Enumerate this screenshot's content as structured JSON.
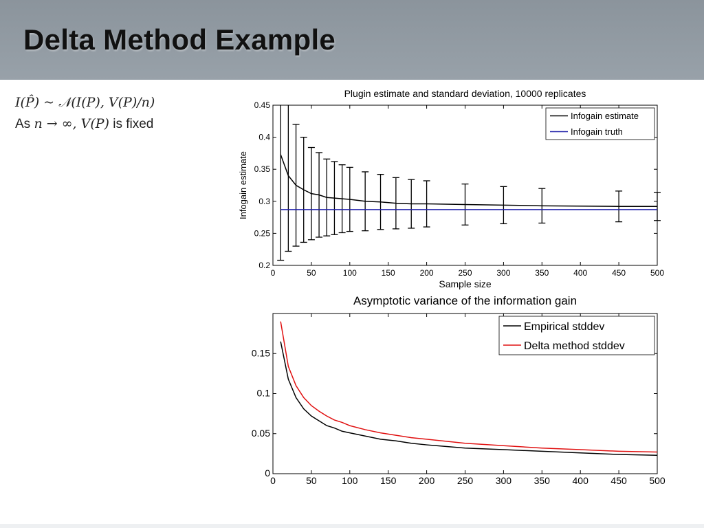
{
  "slide": {
    "title": "Delta Method Example",
    "formula_line": "I(P̂) ~ 𝒩(I(P), V(P)/n)",
    "note_prefix": "As ",
    "note_math": "n → ∞, V(P)",
    "note_suffix": " is fixed"
  },
  "chart_data": [
    {
      "type": "line",
      "title": "Plugin estimate and standard deviation, 10000 replicates",
      "xlabel": "Sample size",
      "ylabel": "Infogain estimate",
      "xlim": [
        0,
        500
      ],
      "ylim": [
        0.2,
        0.45
      ],
      "xticks": [
        "0",
        "50",
        "100",
        "150",
        "200",
        "250",
        "300",
        "350",
        "400",
        "450",
        "500"
      ],
      "yticks": [
        "0.2",
        "0.25",
        "0.3",
        "0.35",
        "0.4",
        "0.45"
      ],
      "legend_position": "top-right",
      "series": [
        {
          "name": "Infogain estimate",
          "color": "#000000",
          "x": [
            10,
            20,
            30,
            40,
            50,
            60,
            70,
            80,
            90,
            100,
            120,
            140,
            160,
            180,
            200,
            250,
            300,
            350,
            450,
            500
          ],
          "values": [
            0.373,
            0.34,
            0.325,
            0.318,
            0.312,
            0.31,
            0.306,
            0.305,
            0.304,
            0.303,
            0.3,
            0.299,
            0.297,
            0.296,
            0.296,
            0.295,
            0.294,
            0.293,
            0.292,
            0.292
          ],
          "error": [
            0.165,
            0.118,
            0.095,
            0.082,
            0.072,
            0.066,
            0.06,
            0.057,
            0.053,
            0.05,
            0.046,
            0.043,
            0.04,
            0.038,
            0.036,
            0.032,
            0.029,
            0.027,
            0.024,
            0.022
          ]
        },
        {
          "name": "Infogain truth",
          "color": "#1f1fa8",
          "x": [
            10,
            500
          ],
          "values": [
            0.287,
            0.287
          ]
        }
      ]
    },
    {
      "type": "line",
      "title": "Asymptotic variance of the information gain",
      "xlabel": "",
      "ylabel": "",
      "xlim": [
        0,
        500
      ],
      "ylim": [
        0,
        0.2
      ],
      "xticks": [
        "0",
        "50",
        "100",
        "150",
        "200",
        "250",
        "300",
        "350",
        "400",
        "450",
        "500"
      ],
      "yticks": [
        "0",
        "0.05",
        "0.1",
        "0.15"
      ],
      "legend_position": "top-right",
      "series": [
        {
          "name": "Empirical stddev",
          "color": "#000000",
          "x": [
            10,
            20,
            30,
            40,
            50,
            60,
            70,
            80,
            90,
            100,
            120,
            140,
            160,
            180,
            200,
            250,
            300,
            350,
            400,
            450,
            500
          ],
          "values": [
            0.165,
            0.118,
            0.095,
            0.081,
            0.072,
            0.066,
            0.06,
            0.057,
            0.053,
            0.051,
            0.047,
            0.043,
            0.041,
            0.038,
            0.036,
            0.032,
            0.03,
            0.028,
            0.026,
            0.024,
            0.023
          ]
        },
        {
          "name": "Delta method stddev",
          "color": "#e01010",
          "x": [
            10,
            20,
            30,
            40,
            50,
            60,
            70,
            80,
            90,
            100,
            120,
            140,
            160,
            180,
            200,
            250,
            300,
            350,
            400,
            450,
            500
          ],
          "values": [
            0.19,
            0.134,
            0.11,
            0.095,
            0.085,
            0.078,
            0.072,
            0.067,
            0.064,
            0.06,
            0.055,
            0.051,
            0.048,
            0.045,
            0.043,
            0.038,
            0.035,
            0.032,
            0.03,
            0.028,
            0.027
          ]
        }
      ]
    }
  ]
}
